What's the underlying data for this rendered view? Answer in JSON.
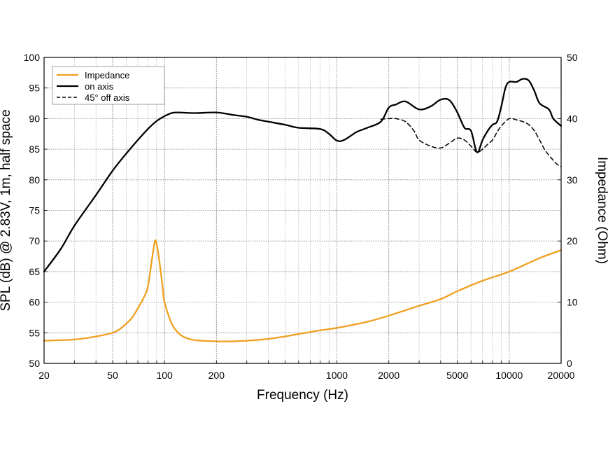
{
  "chart_data": {
    "type": "line",
    "title": "",
    "xlabel": "Frequency (Hz)",
    "ylabel_left": "SPL (dB) @ 2.83V, 1m, half space",
    "ylabel_right": "Impedance (Ohm)",
    "x_scale": "log",
    "xlim": [
      20,
      20000
    ],
    "ylim_left": [
      50,
      100
    ],
    "ylim_right": [
      0,
      50
    ],
    "x_ticks": [
      20,
      50,
      100,
      200,
      1000,
      2000,
      5000,
      10000,
      20000
    ],
    "x_tick_labels": [
      "20",
      "50",
      "100",
      "200",
      "1000",
      "2000",
      "5000",
      "10000",
      "20000"
    ],
    "y_ticks_left": [
      50,
      55,
      60,
      65,
      70,
      75,
      80,
      85,
      90,
      95,
      100
    ],
    "y_ticks_right": [
      0,
      10,
      20,
      30,
      40,
      50
    ],
    "grid": true,
    "legend_position": "top-left",
    "series": [
      {
        "name": "Impedance",
        "axis": "right",
        "color": "#f0a020",
        "style": "solid",
        "points": [
          [
            20,
            3.7
          ],
          [
            30,
            3.9
          ],
          [
            40,
            4.4
          ],
          [
            50,
            5.0
          ],
          [
            55,
            5.6
          ],
          [
            60,
            6.5
          ],
          [
            65,
            7.5
          ],
          [
            70,
            9.0
          ],
          [
            75,
            10.5
          ],
          [
            80,
            12.5
          ],
          [
            85,
            17.5
          ],
          [
            88,
            20.0
          ],
          [
            90,
            19.5
          ],
          [
            93,
            17.0
          ],
          [
            97,
            13.0
          ],
          [
            100,
            10.0
          ],
          [
            110,
            6.5
          ],
          [
            120,
            5.0
          ],
          [
            130,
            4.3
          ],
          [
            150,
            3.8
          ],
          [
            200,
            3.6
          ],
          [
            250,
            3.6
          ],
          [
            300,
            3.7
          ],
          [
            400,
            4.0
          ],
          [
            500,
            4.4
          ],
          [
            600,
            4.8
          ],
          [
            800,
            5.4
          ],
          [
            1000,
            5.8
          ],
          [
            1500,
            6.8
          ],
          [
            2000,
            7.8
          ],
          [
            3000,
            9.4
          ],
          [
            4000,
            10.5
          ],
          [
            5000,
            11.8
          ],
          [
            7000,
            13.5
          ],
          [
            10000,
            15.0
          ],
          [
            15000,
            17.2
          ],
          [
            20000,
            18.5
          ]
        ]
      },
      {
        "name": "on axis",
        "axis": "left",
        "color": "#000000",
        "style": "solid",
        "points": [
          [
            20,
            65.0
          ],
          [
            25,
            68.7
          ],
          [
            30,
            72.5
          ],
          [
            40,
            77.5
          ],
          [
            50,
            81.5
          ],
          [
            60,
            84.3
          ],
          [
            70,
            86.5
          ],
          [
            80,
            88.3
          ],
          [
            90,
            89.6
          ],
          [
            100,
            90.4
          ],
          [
            110,
            90.9
          ],
          [
            120,
            91.0
          ],
          [
            150,
            90.9
          ],
          [
            200,
            91.0
          ],
          [
            250,
            90.6
          ],
          [
            300,
            90.3
          ],
          [
            350,
            89.8
          ],
          [
            400,
            89.5
          ],
          [
            500,
            89.0
          ],
          [
            600,
            88.5
          ],
          [
            800,
            88.3
          ],
          [
            900,
            87.5
          ],
          [
            1000,
            86.4
          ],
          [
            1100,
            86.5
          ],
          [
            1300,
            87.8
          ],
          [
            1500,
            88.5
          ],
          [
            1800,
            89.5
          ],
          [
            2000,
            91.8
          ],
          [
            2200,
            92.3
          ],
          [
            2500,
            92.8
          ],
          [
            3000,
            91.5
          ],
          [
            3500,
            92.0
          ],
          [
            4000,
            93.1
          ],
          [
            4500,
            93.0
          ],
          [
            5000,
            91.0
          ],
          [
            5500,
            88.5
          ],
          [
            6000,
            88.0
          ],
          [
            6500,
            84.5
          ],
          [
            7000,
            86.5
          ],
          [
            7500,
            88.0
          ],
          [
            8000,
            89.0
          ],
          [
            8500,
            89.5
          ],
          [
            9000,
            92.0
          ],
          [
            9500,
            95.0
          ],
          [
            10000,
            96.0
          ],
          [
            11000,
            96.0
          ],
          [
            12000,
            96.5
          ],
          [
            13000,
            96.2
          ],
          [
            14000,
            94.5
          ],
          [
            15000,
            92.5
          ],
          [
            17000,
            91.5
          ],
          [
            18000,
            90.0
          ],
          [
            20000,
            88.8
          ]
        ]
      },
      {
        "name": "45° off axis",
        "axis": "left",
        "color": "#000000",
        "style": "dashed",
        "points": [
          [
            1800,
            89.9
          ],
          [
            2000,
            90.0
          ],
          [
            2200,
            90.0
          ],
          [
            2500,
            89.5
          ],
          [
            2800,
            88.0
          ],
          [
            3000,
            86.5
          ],
          [
            3500,
            85.5
          ],
          [
            4000,
            85.2
          ],
          [
            4500,
            86.0
          ],
          [
            5000,
            86.8
          ],
          [
            5500,
            86.5
          ],
          [
            6000,
            85.5
          ],
          [
            6500,
            84.5
          ],
          [
            7000,
            85.0
          ],
          [
            7500,
            85.8
          ],
          [
            8000,
            86.5
          ],
          [
            8500,
            87.8
          ],
          [
            9000,
            88.8
          ],
          [
            10000,
            90.0
          ],
          [
            11000,
            89.8
          ],
          [
            12000,
            89.5
          ],
          [
            13000,
            89.0
          ],
          [
            14000,
            88.0
          ],
          [
            15000,
            86.5
          ],
          [
            16000,
            85.0
          ],
          [
            17000,
            84.0
          ],
          [
            18000,
            83.2
          ],
          [
            19000,
            82.5
          ],
          [
            20000,
            82.2
          ]
        ]
      }
    ]
  }
}
